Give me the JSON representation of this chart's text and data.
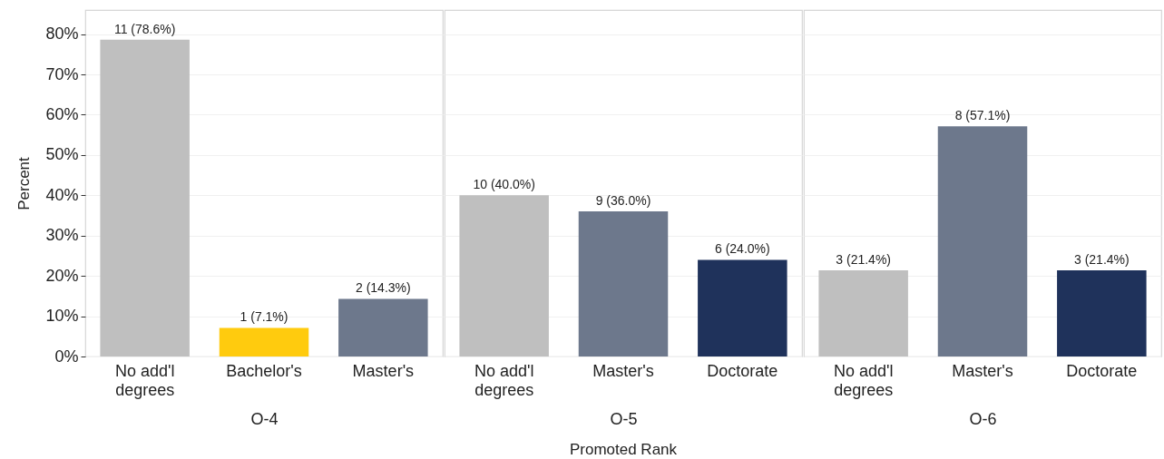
{
  "chart_data": [
    {
      "type": "bar",
      "categories": [
        "No add'l degrees",
        "Bachelor's",
        "Master's"
      ],
      "values": [
        78.6,
        7.1,
        14.3
      ],
      "colors": [
        "#bfbfbf",
        "#ffcb0e",
        "#6d788c"
      ],
      "value_labels": [
        "11 (78.6%)",
        "1 (7.1%)",
        "2 (14.3%)"
      ],
      "xlabel": "O-4",
      "ylabel": "Percent",
      "ylim": [
        0,
        86
      ],
      "yticks": [
        {
          "value": 0,
          "label": "0%"
        },
        {
          "value": 10,
          "label": "10%"
        },
        {
          "value": 20,
          "label": "20%"
        },
        {
          "value": 30,
          "label": "30%"
        },
        {
          "value": 40,
          "label": "40%"
        },
        {
          "value": 50,
          "label": "50%"
        },
        {
          "value": 60,
          "label": "60%"
        },
        {
          "value": 70,
          "label": "70%"
        },
        {
          "value": 80,
          "label": "80%"
        }
      ],
      "grid": "y"
    },
    {
      "type": "bar",
      "categories": [
        "No add'l degrees",
        "Master's",
        "Doctorate"
      ],
      "values": [
        40.0,
        36.0,
        24.0
      ],
      "colors": [
        "#bfbfbf",
        "#6d788c",
        "#1f325b"
      ],
      "value_labels": [
        "10 (40.0%)",
        "9 (36.0%)",
        "6 (24.0%)"
      ],
      "xlabel": "O-5",
      "annotations": [
        "Promoted Rank"
      ],
      "ylim": [
        0,
        86
      ],
      "yticks": [
        0,
        10,
        20,
        30,
        40,
        50,
        60,
        70,
        80
      ],
      "grid": "y",
      "tick_labels": "x"
    },
    {
      "type": "bar",
      "categories": [
        "No add'l degrees",
        "Master's",
        "Doctorate"
      ],
      "values": [
        21.4,
        57.1,
        21.4
      ],
      "colors": [
        "#bfbfbf",
        "#6d788c",
        "#1f325b"
      ],
      "value_labels": [
        "3 (21.4%)",
        "8 (57.1%)",
        "3 (21.4%)"
      ],
      "xlabel": "O-6",
      "ylim": [
        0,
        86
      ],
      "yticks": [
        0,
        10,
        20,
        30,
        40,
        50,
        60,
        70,
        80
      ],
      "grid": "y",
      "tick_labels": "x"
    }
  ]
}
